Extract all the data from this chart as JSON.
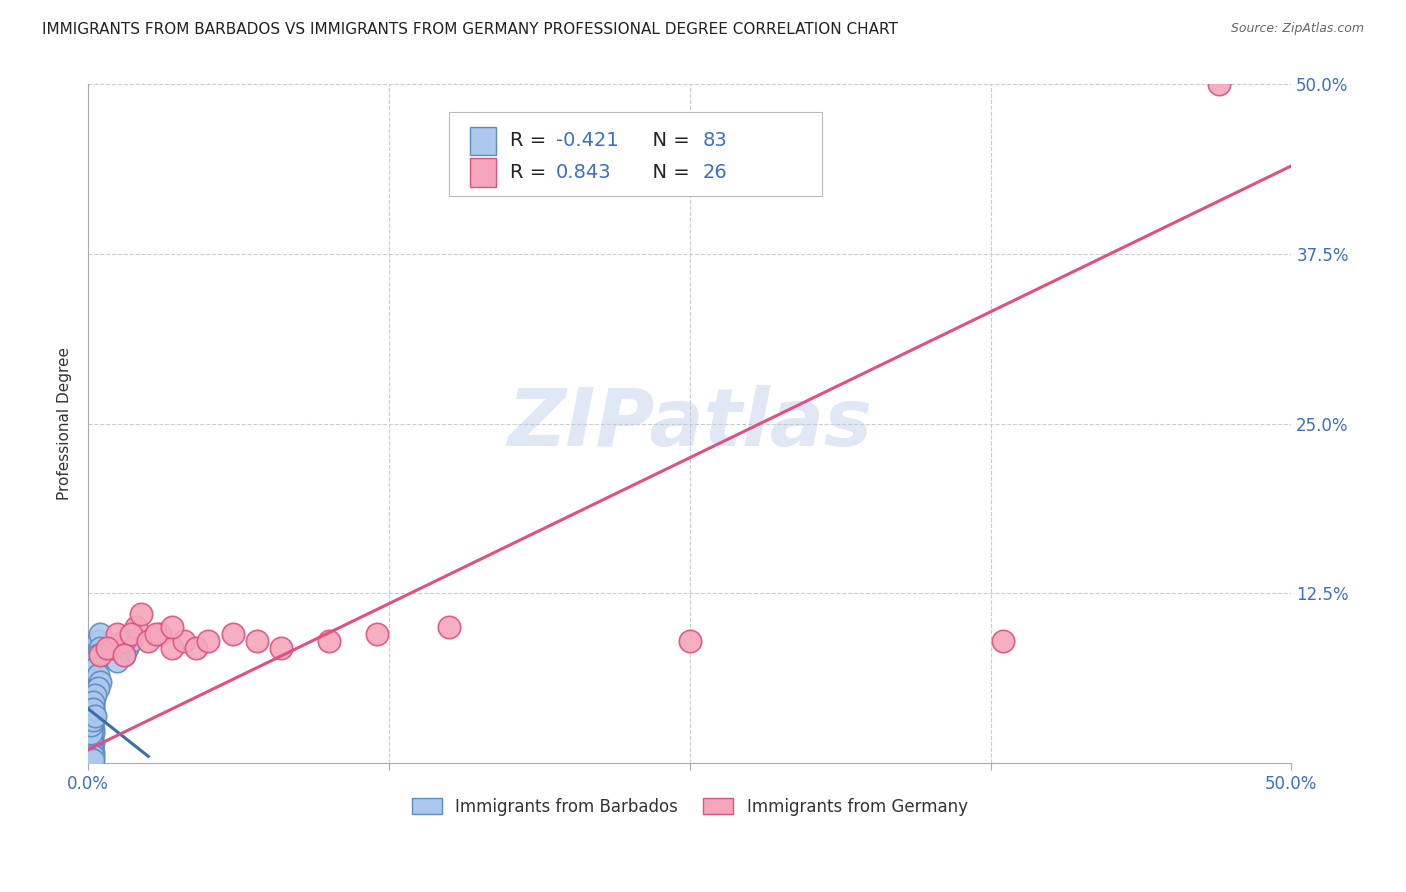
{
  "title": "IMMIGRANTS FROM BARBADOS VS IMMIGRANTS FROM GERMANY PROFESSIONAL DEGREE CORRELATION CHART",
  "source": "Source: ZipAtlas.com",
  "ylabel": "Professional Degree",
  "xlim": [
    0.0,
    0.5
  ],
  "ylim": [
    0.0,
    0.5
  ],
  "grid_ticks": [
    0.125,
    0.25,
    0.375,
    0.5
  ],
  "right_ytick_labels": [
    "12.5%",
    "25.0%",
    "37.5%",
    "50.0%"
  ],
  "series": [
    {
      "name": "Immigrants from Barbados",
      "color": "#adc8ed",
      "edge_color": "#5b8cc4",
      "R": -0.421,
      "N": 83,
      "line_color": "#3a6ea8",
      "x": [
        0.001,
        0.001,
        0.001,
        0.002,
        0.001,
        0.001,
        0.001,
        0.002,
        0.001,
        0.001,
        0.001,
        0.001,
        0.001,
        0.002,
        0.001,
        0.001,
        0.001,
        0.001,
        0.002,
        0.001,
        0.001,
        0.001,
        0.001,
        0.001,
        0.002,
        0.001,
        0.001,
        0.001,
        0.002,
        0.001,
        0.001,
        0.001,
        0.001,
        0.002,
        0.001,
        0.001,
        0.001,
        0.001,
        0.002,
        0.001,
        0.001,
        0.001,
        0.001,
        0.001,
        0.002,
        0.001,
        0.001,
        0.002,
        0.001,
        0.001,
        0.001,
        0.001,
        0.001,
        0.002,
        0.001,
        0.001,
        0.001,
        0.001,
        0.002,
        0.001,
        0.003,
        0.003,
        0.004,
        0.004,
        0.005,
        0.005,
        0.004,
        0.003,
        0.003,
        0.004,
        0.005,
        0.004,
        0.003,
        0.002,
        0.002,
        0.003,
        0.016,
        0.018,
        0.015,
        0.012,
        0.002,
        0.001,
        0.002
      ],
      "y": [
        0.02,
        0.015,
        0.03,
        0.025,
        0.01,
        0.035,
        0.04,
        0.045,
        0.05,
        0.055,
        0.06,
        0.065,
        0.07,
        0.075,
        0.08,
        0.02,
        0.025,
        0.03,
        0.015,
        0.01,
        0.005,
        0.008,
        0.012,
        0.018,
        0.022,
        0.028,
        0.032,
        0.038,
        0.042,
        0.048,
        0.052,
        0.058,
        0.062,
        0.068,
        0.015,
        0.02,
        0.025,
        0.03,
        0.035,
        0.04,
        0.045,
        0.05,
        0.055,
        0.06,
        0.065,
        0.07,
        0.075,
        0.08,
        0.01,
        0.015,
        0.02,
        0.025,
        0.03,
        0.008,
        0.012,
        0.018,
        0.022,
        0.028,
        0.032,
        0.038,
        0.075,
        0.08,
        0.085,
        0.09,
        0.095,
        0.085,
        0.08,
        0.075,
        0.07,
        0.065,
        0.06,
        0.055,
        0.05,
        0.045,
        0.04,
        0.035,
        0.085,
        0.09,
        0.08,
        0.075,
        0.005,
        0.003,
        0.002
      ],
      "regression": {
        "x0": 0.0,
        "y0": 0.04,
        "x1": 0.025,
        "y1": 0.005
      }
    },
    {
      "name": "Immigrants from Germany",
      "color": "#f4a7bb",
      "edge_color": "#e05080",
      "R": 0.843,
      "N": 26,
      "line_color": "#e05080",
      "x": [
        0.005,
        0.01,
        0.015,
        0.012,
        0.02,
        0.008,
        0.018,
        0.025,
        0.03,
        0.015,
        0.035,
        0.022,
        0.04,
        0.028,
        0.045,
        0.05,
        0.035,
        0.06,
        0.07,
        0.08,
        0.1,
        0.12,
        0.15,
        0.25,
        0.38,
        0.47
      ],
      "y": [
        0.08,
        0.085,
        0.09,
        0.095,
        0.1,
        0.085,
        0.095,
        0.09,
        0.095,
        0.08,
        0.085,
        0.11,
        0.09,
        0.095,
        0.085,
        0.09,
        0.1,
        0.095,
        0.09,
        0.085,
        0.09,
        0.095,
        0.1,
        0.09,
        0.09,
        0.5
      ],
      "regression": {
        "x0": 0.0,
        "y0": 0.01,
        "x1": 0.5,
        "y1": 0.44
      }
    }
  ],
  "legend_box": {
    "R1_label": "R = ",
    "R1_val": "-0.421",
    "N1_label": "  N = ",
    "N1_val": "83",
    "R2_label": "R =  ",
    "R2_val": "0.843",
    "N2_label": "  N = ",
    "N2_val": "26"
  },
  "watermark": "ZIPatlas",
  "background_color": "#ffffff",
  "grid_color": "#cccccc",
  "title_color": "#222222",
  "axis_tick_color": "#3a6ec8",
  "value_color": "#3a6ec8",
  "title_fontsize": 11,
  "label_fontsize": 11,
  "tick_fontsize": 12
}
